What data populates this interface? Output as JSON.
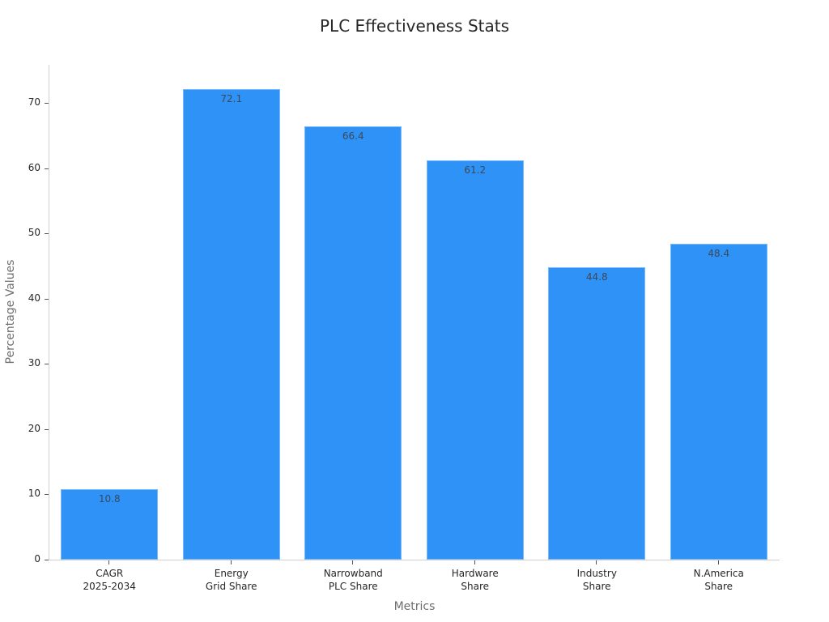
{
  "chart_data": {
    "type": "bar",
    "title": "PLC Effectiveness Stats",
    "xlabel": "Metrics",
    "ylabel": "Percentage Values",
    "categories": [
      "CAGR\n2025-2034",
      "Energy\nGrid Share",
      "Narrowband\nPLC Share",
      "Hardware\nShare",
      "Industry\nShare",
      "N.America\nShare"
    ],
    "values": [
      10.8,
      72.1,
      66.4,
      61.2,
      44.8,
      48.4
    ],
    "value_labels": [
      "10.8",
      "72.1",
      "66.4",
      "61.2",
      "44.8",
      "48.4"
    ],
    "yticks": [
      0,
      10,
      20,
      30,
      40,
      50,
      60,
      70
    ],
    "ylim": [
      0,
      75.8
    ],
    "grid": false,
    "legend": null,
    "bar_color": "#2f92f7"
  }
}
